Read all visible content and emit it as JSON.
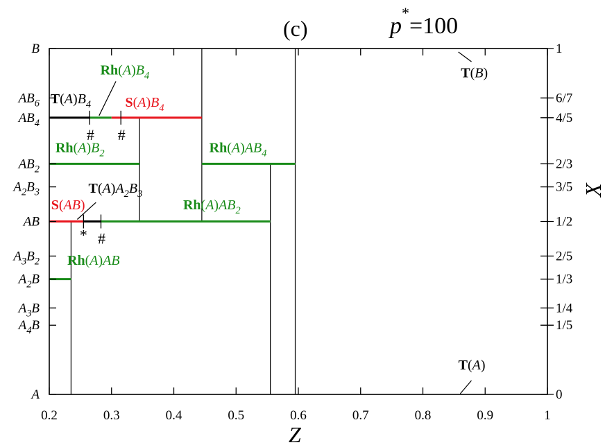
{
  "chart_data": {
    "type": "line",
    "panel_label": "(c)",
    "parameter": {
      "symbol": "p",
      "superscript": "*",
      "value": "=100"
    },
    "xlabel": "Z",
    "ylabel": "X",
    "xlim": [
      0.2,
      1.0
    ],
    "ylim": [
      0,
      1
    ],
    "x_ticks": [
      {
        "value": 0.2,
        "label": "0.2"
      },
      {
        "value": 0.3,
        "label": "0.3"
      },
      {
        "value": 0.4,
        "label": "0.4"
      },
      {
        "value": 0.5,
        "label": "0.5"
      },
      {
        "value": 0.6,
        "label": "0.6"
      },
      {
        "value": 0.7,
        "label": "0.7"
      },
      {
        "value": 0.8,
        "label": "0.8"
      },
      {
        "value": 0.9,
        "label": "0.9"
      },
      {
        "value": 1.0,
        "label": "1"
      }
    ],
    "right_ticks": [
      {
        "value": 1,
        "label": "1"
      },
      {
        "value": 0.8571,
        "label": "6/7"
      },
      {
        "value": 0.8,
        "label": "4/5"
      },
      {
        "value": 0.6667,
        "label": "2/3"
      },
      {
        "value": 0.6,
        "label": "3/5"
      },
      {
        "value": 0.5,
        "label": "1/2"
      },
      {
        "value": 0.4,
        "label": "2/5"
      },
      {
        "value": 0.3333,
        "label": "1/3"
      },
      {
        "value": 0.25,
        "label": "1/4"
      },
      {
        "value": 0.2,
        "label": "1/5"
      },
      {
        "value": 0,
        "label": "0"
      }
    ],
    "left_ticks": [
      {
        "value": 1,
        "parts": [
          {
            "t": "B"
          }
        ]
      },
      {
        "value": 0.8571,
        "parts": [
          {
            "t": "AB"
          },
          {
            "t": "6",
            "s": "sub"
          }
        ]
      },
      {
        "value": 0.8,
        "parts": [
          {
            "t": "AB"
          },
          {
            "t": "4",
            "s": "sub"
          }
        ]
      },
      {
        "value": 0.6667,
        "parts": [
          {
            "t": "AB"
          },
          {
            "t": "2",
            "s": "sub"
          }
        ]
      },
      {
        "value": 0.6,
        "parts": [
          {
            "t": "A"
          },
          {
            "t": "2",
            "s": "sub"
          },
          {
            "t": "B"
          },
          {
            "t": "3",
            "s": "sub"
          }
        ]
      },
      {
        "value": 0.5,
        "parts": [
          {
            "t": "AB"
          }
        ]
      },
      {
        "value": 0.4,
        "parts": [
          {
            "t": "A"
          },
          {
            "t": "3",
            "s": "sub"
          },
          {
            "t": "B"
          },
          {
            "t": "2",
            "s": "sub"
          }
        ]
      },
      {
        "value": 0.3333,
        "parts": [
          {
            "t": "A"
          },
          {
            "t": "2",
            "s": "sub"
          },
          {
            "t": "B"
          }
        ]
      },
      {
        "value": 0.25,
        "parts": [
          {
            "t": "A"
          },
          {
            "t": "3",
            "s": "sub"
          },
          {
            "t": "B"
          }
        ]
      },
      {
        "value": 0.2,
        "parts": [
          {
            "t": "A"
          },
          {
            "t": "4",
            "s": "sub"
          },
          {
            "t": "B"
          }
        ]
      },
      {
        "value": 0,
        "parts": [
          {
            "t": "A"
          }
        ]
      }
    ],
    "colors": {
      "black": "#000000",
      "green": "#1a8c1a",
      "red": "#e8141c"
    },
    "phase_segments": [
      {
        "x0": 0.2,
        "x1": 0.265,
        "y": 0.8,
        "color": "black"
      },
      {
        "x0": 0.265,
        "x1": 0.3,
        "y": 0.8,
        "color": "green"
      },
      {
        "x0": 0.3,
        "x1": 0.445,
        "y": 0.8,
        "color": "red"
      },
      {
        "x0": 0.2,
        "x1": 0.345,
        "y": 0.6667,
        "color": "green"
      },
      {
        "x0": 0.445,
        "x1": 0.595,
        "y": 0.6667,
        "color": "green"
      },
      {
        "x0": 0.2,
        "x1": 0.255,
        "y": 0.5,
        "color": "red"
      },
      {
        "x0": 0.255,
        "x1": 0.283,
        "y": 0.5,
        "color": "black"
      },
      {
        "x0": 0.283,
        "x1": 0.555,
        "y": 0.5,
        "color": "green"
      },
      {
        "x0": 0.2,
        "x1": 0.235,
        "y": 0.3333,
        "color": "green"
      }
    ],
    "vertical_lines": [
      {
        "x": 0.235,
        "y0": 0,
        "y1": 0.5
      },
      {
        "x": 0.345,
        "y0": 0.5,
        "y1": 0.8
      },
      {
        "x": 0.445,
        "y0": 0.5,
        "y1": 1
      },
      {
        "x": 0.555,
        "y0": 0,
        "y1": 0.6667
      },
      {
        "x": 0.595,
        "y0": 0,
        "y1": 1
      }
    ],
    "markers": [
      {
        "x": 0.265,
        "y": 0.8,
        "label": "#"
      },
      {
        "x": 0.315,
        "y": 0.8,
        "label": "#"
      },
      {
        "x": 0.255,
        "y": 0.5,
        "label": "*"
      },
      {
        "x": 0.283,
        "y": 0.5,
        "label": "#"
      }
    ],
    "annotations": [
      {
        "color": "black",
        "x": 0.202,
        "y": 0.842,
        "parts": [
          {
            "t": "T",
            "w": "b"
          },
          {
            "t": "("
          },
          {
            "t": "A",
            "i": true
          },
          {
            "t": ")"
          },
          {
            "t": "B",
            "i": true
          },
          {
            "t": "4",
            "i": true,
            "s": "sub"
          }
        ]
      },
      {
        "color": "green",
        "x": 0.282,
        "y": 0.925,
        "parts": [
          {
            "t": "Rh",
            "w": "b"
          },
          {
            "t": "("
          },
          {
            "t": "A",
            "i": true
          },
          {
            "t": ")"
          },
          {
            "t": "B",
            "i": true
          },
          {
            "t": "4",
            "i": true,
            "s": "sub"
          }
        ],
        "leader": [
          0.307,
          0.905,
          0.28,
          0.806
        ]
      },
      {
        "color": "red",
        "x": 0.322,
        "y": 0.832,
        "parts": [
          {
            "t": "S",
            "w": "b"
          },
          {
            "t": "("
          },
          {
            "t": "A",
            "i": true
          },
          {
            "t": ")"
          },
          {
            "t": "B",
            "i": true
          },
          {
            "t": "4",
            "i": true,
            "s": "sub"
          }
        ]
      },
      {
        "color": "green",
        "x": 0.21,
        "y": 0.7,
        "parts": [
          {
            "t": "Rh",
            "w": "b"
          },
          {
            "t": "("
          },
          {
            "t": "A",
            "i": true
          },
          {
            "t": ")"
          },
          {
            "t": "B",
            "i": true
          },
          {
            "t": "2",
            "i": true,
            "s": "sub"
          }
        ]
      },
      {
        "color": "green",
        "x": 0.457,
        "y": 0.7,
        "parts": [
          {
            "t": "Rh",
            "w": "b"
          },
          {
            "t": "("
          },
          {
            "t": "A",
            "i": true
          },
          {
            "t": ")"
          },
          {
            "t": "AB",
            "i": true
          },
          {
            "t": "4",
            "i": true,
            "s": "sub"
          }
        ]
      },
      {
        "color": "black",
        "x": 0.263,
        "y": 0.583,
        "parts": [
          {
            "t": "T",
            "w": "b"
          },
          {
            "t": "("
          },
          {
            "t": "A",
            "i": true
          },
          {
            "t": ")"
          },
          {
            "t": "A",
            "i": true
          },
          {
            "t": "2",
            "i": true,
            "s": "sub"
          },
          {
            "t": "B",
            "i": true
          },
          {
            "t": "3",
            "i": true,
            "s": "sub"
          }
        ],
        "leader": [
          0.275,
          0.555,
          0.245,
          0.506
        ]
      },
      {
        "color": "red",
        "x": 0.203,
        "y": 0.535,
        "parts": [
          {
            "t": "S",
            "w": "b"
          },
          {
            "t": "("
          },
          {
            "t": "AB",
            "i": true
          },
          {
            "t": ")"
          }
        ]
      },
      {
        "color": "green",
        "x": 0.415,
        "y": 0.535,
        "parts": [
          {
            "t": "Rh",
            "w": "b"
          },
          {
            "t": "("
          },
          {
            "t": "A",
            "i": true
          },
          {
            "t": ")"
          },
          {
            "t": "AB",
            "i": true
          },
          {
            "t": "2",
            "i": true,
            "s": "sub"
          }
        ]
      },
      {
        "color": "green",
        "x": 0.229,
        "y": 0.375,
        "parts": [
          {
            "t": "Rh",
            "w": "b"
          },
          {
            "t": "("
          },
          {
            "t": "A",
            "i": true
          },
          {
            "t": ")"
          },
          {
            "t": "AB",
            "i": true
          }
        ]
      },
      {
        "color": "black",
        "x": 0.861,
        "y": 0.917,
        "parts": [
          {
            "t": "T",
            "w": "b"
          },
          {
            "t": "("
          },
          {
            "t": "B",
            "i": true
          },
          {
            "t": ")"
          }
        ]
      },
      {
        "color": "black",
        "x": 0.857,
        "y": 0.072,
        "parts": [
          {
            "t": "T",
            "w": "b"
          },
          {
            "t": "("
          },
          {
            "t": "A",
            "i": true
          },
          {
            "t": ")"
          }
        ]
      }
    ],
    "extra_leaders": [
      {
        "x0": 0.857,
        "y0": 0.99,
        "x1": 0.878,
        "y1": 0.962
      },
      {
        "x0": 0.86,
        "y0": 0.002,
        "x1": 0.878,
        "y1": 0.04
      }
    ]
  }
}
